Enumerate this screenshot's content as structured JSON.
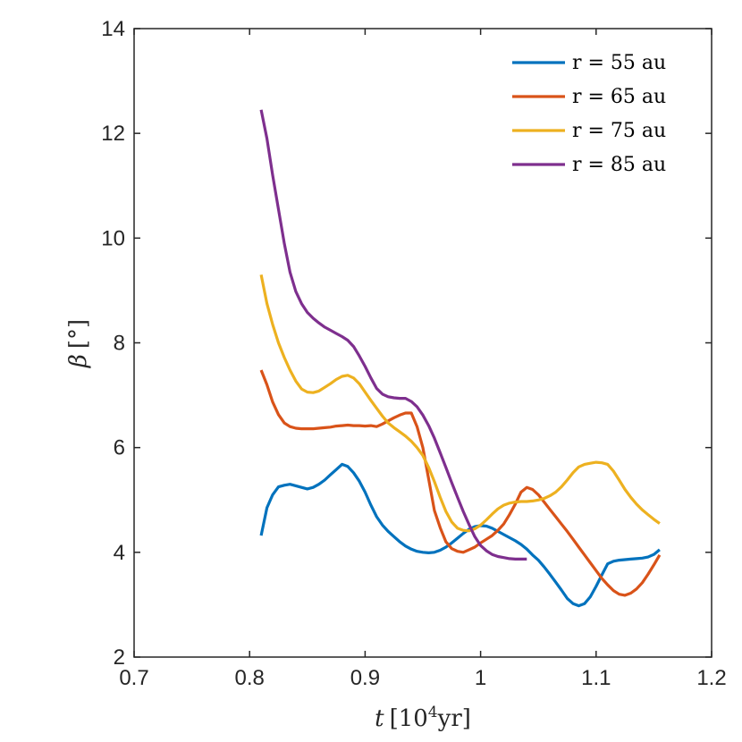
{
  "chart_data": {
    "type": "line",
    "title": "",
    "xlabel": {
      "var": "t",
      "unit_open": "[10",
      "unit_exp": "4",
      "unit_rest": "yr]"
    },
    "ylabel": {
      "var": "β",
      "unit": "[°]"
    },
    "xlim": [
      0.7,
      1.2
    ],
    "ylim": [
      2,
      14
    ],
    "xticks": [
      0.7,
      0.8,
      0.9,
      1.0,
      1.1,
      1.2
    ],
    "xtick_labels": [
      "0.7",
      "0.8",
      "0.9",
      "1",
      "1.1",
      "1.2"
    ],
    "yticks": [
      2,
      4,
      6,
      8,
      10,
      12,
      14
    ],
    "ytick_labels": [
      "2",
      "4",
      "6",
      "8",
      "10",
      "12",
      "14"
    ],
    "grid": false,
    "legend_position": "top-right",
    "series": [
      {
        "name": "r = 55 au",
        "color": "#0072BD",
        "x": [
          0.81,
          0.815,
          0.82,
          0.825,
          0.83,
          0.835,
          0.84,
          0.845,
          0.85,
          0.855,
          0.86,
          0.865,
          0.87,
          0.875,
          0.88,
          0.885,
          0.89,
          0.895,
          0.9,
          0.905,
          0.91,
          0.915,
          0.92,
          0.925,
          0.93,
          0.935,
          0.94,
          0.945,
          0.95,
          0.955,
          0.96,
          0.965,
          0.97,
          0.975,
          0.98,
          0.985,
          0.99,
          0.995,
          1.0,
          1.005,
          1.01,
          1.015,
          1.02,
          1.025,
          1.03,
          1.035,
          1.04,
          1.045,
          1.05,
          1.055,
          1.06,
          1.065,
          1.07,
          1.075,
          1.08,
          1.085,
          1.09,
          1.095,
          1.1,
          1.105,
          1.11,
          1.115,
          1.12,
          1.125,
          1.13,
          1.135,
          1.14,
          1.145,
          1.15,
          1.155
        ],
        "y": [
          4.32,
          4.85,
          5.1,
          5.25,
          5.28,
          5.3,
          5.27,
          5.24,
          5.21,
          5.24,
          5.3,
          5.38,
          5.48,
          5.58,
          5.68,
          5.64,
          5.52,
          5.36,
          5.15,
          4.9,
          4.68,
          4.52,
          4.4,
          4.3,
          4.2,
          4.12,
          4.06,
          4.02,
          4.0,
          3.99,
          4.0,
          4.04,
          4.1,
          4.18,
          4.27,
          4.36,
          4.44,
          4.49,
          4.51,
          4.5,
          4.46,
          4.4,
          4.34,
          4.28,
          4.22,
          4.15,
          4.06,
          3.95,
          3.85,
          3.72,
          3.58,
          3.43,
          3.28,
          3.12,
          3.02,
          2.98,
          3.02,
          3.15,
          3.35,
          3.57,
          3.78,
          3.83,
          3.85,
          3.86,
          3.87,
          3.88,
          3.89,
          3.91,
          3.96,
          4.05
        ]
      },
      {
        "name": "r = 65 au",
        "color": "#D95319",
        "x": [
          0.81,
          0.815,
          0.82,
          0.825,
          0.83,
          0.835,
          0.84,
          0.845,
          0.85,
          0.855,
          0.86,
          0.865,
          0.87,
          0.875,
          0.88,
          0.885,
          0.89,
          0.895,
          0.9,
          0.905,
          0.91,
          0.915,
          0.92,
          0.925,
          0.93,
          0.935,
          0.94,
          0.945,
          0.95,
          0.955,
          0.96,
          0.965,
          0.97,
          0.975,
          0.98,
          0.985,
          0.99,
          0.995,
          1.0,
          1.005,
          1.01,
          1.015,
          1.02,
          1.025,
          1.03,
          1.035,
          1.04,
          1.045,
          1.05,
          1.055,
          1.06,
          1.065,
          1.07,
          1.075,
          1.08,
          1.085,
          1.09,
          1.095,
          1.1,
          1.105,
          1.11,
          1.115,
          1.12,
          1.125,
          1.13,
          1.135,
          1.14,
          1.145,
          1.15,
          1.155
        ],
        "y": [
          7.48,
          7.2,
          6.87,
          6.63,
          6.47,
          6.4,
          6.37,
          6.36,
          6.36,
          6.36,
          6.37,
          6.38,
          6.39,
          6.41,
          6.42,
          6.43,
          6.42,
          6.42,
          6.41,
          6.42,
          6.4,
          6.45,
          6.51,
          6.57,
          6.62,
          6.66,
          6.66,
          6.4,
          6.0,
          5.4,
          4.8,
          4.47,
          4.2,
          4.07,
          4.02,
          4.0,
          4.05,
          4.1,
          4.18,
          4.25,
          4.32,
          4.42,
          4.54,
          4.72,
          4.92,
          5.15,
          5.24,
          5.2,
          5.1,
          4.96,
          4.82,
          4.68,
          4.54,
          4.4,
          4.25,
          4.1,
          3.95,
          3.8,
          3.65,
          3.5,
          3.38,
          3.27,
          3.2,
          3.18,
          3.22,
          3.3,
          3.42,
          3.58,
          3.76,
          3.95
        ]
      },
      {
        "name": "r = 75 au",
        "color": "#EDB120",
        "x": [
          0.81,
          0.815,
          0.82,
          0.825,
          0.83,
          0.835,
          0.84,
          0.845,
          0.85,
          0.855,
          0.86,
          0.865,
          0.87,
          0.875,
          0.88,
          0.885,
          0.89,
          0.895,
          0.9,
          0.905,
          0.91,
          0.915,
          0.92,
          0.925,
          0.93,
          0.935,
          0.94,
          0.945,
          0.95,
          0.955,
          0.96,
          0.965,
          0.97,
          0.975,
          0.98,
          0.985,
          0.99,
          0.995,
          1.0,
          1.005,
          1.01,
          1.015,
          1.02,
          1.025,
          1.03,
          1.035,
          1.04,
          1.045,
          1.05,
          1.055,
          1.06,
          1.065,
          1.07,
          1.075,
          1.08,
          1.085,
          1.09,
          1.095,
          1.1,
          1.105,
          1.11,
          1.115,
          1.12,
          1.125,
          1.13,
          1.135,
          1.14,
          1.145,
          1.15,
          1.155
        ],
        "y": [
          9.3,
          8.75,
          8.35,
          8.0,
          7.72,
          7.48,
          7.27,
          7.12,
          7.06,
          7.05,
          7.08,
          7.15,
          7.22,
          7.3,
          7.36,
          7.38,
          7.33,
          7.22,
          7.06,
          6.9,
          6.75,
          6.6,
          6.47,
          6.38,
          6.3,
          6.22,
          6.12,
          6.0,
          5.85,
          5.62,
          5.35,
          5.05,
          4.78,
          4.58,
          4.46,
          4.42,
          4.41,
          4.45,
          4.52,
          4.62,
          4.73,
          4.83,
          4.9,
          4.94,
          4.96,
          4.97,
          4.97,
          4.98,
          5.0,
          5.03,
          5.08,
          5.15,
          5.25,
          5.38,
          5.52,
          5.63,
          5.68,
          5.7,
          5.72,
          5.71,
          5.68,
          5.55,
          5.38,
          5.2,
          5.05,
          4.92,
          4.81,
          4.72,
          4.63,
          4.55
        ]
      },
      {
        "name": "r = 85 au",
        "color": "#7E2F8E",
        "x": [
          0.81,
          0.815,
          0.82,
          0.825,
          0.83,
          0.835,
          0.84,
          0.845,
          0.85,
          0.855,
          0.86,
          0.865,
          0.87,
          0.875,
          0.88,
          0.885,
          0.89,
          0.895,
          0.9,
          0.905,
          0.91,
          0.915,
          0.92,
          0.925,
          0.93,
          0.935,
          0.94,
          0.945,
          0.95,
          0.955,
          0.96,
          0.965,
          0.97,
          0.975,
          0.98,
          0.985,
          0.99,
          0.995,
          1.0,
          1.005,
          1.01,
          1.015,
          1.02,
          1.025,
          1.03,
          1.035,
          1.04
        ],
        "y": [
          12.45,
          11.9,
          11.2,
          10.55,
          9.9,
          9.35,
          8.98,
          8.75,
          8.58,
          8.47,
          8.38,
          8.3,
          8.24,
          8.18,
          8.12,
          8.05,
          7.93,
          7.75,
          7.55,
          7.33,
          7.13,
          7.02,
          6.97,
          6.95,
          6.94,
          6.94,
          6.88,
          6.78,
          6.62,
          6.42,
          6.18,
          5.9,
          5.62,
          5.33,
          5.05,
          4.78,
          4.53,
          4.3,
          4.13,
          4.03,
          3.96,
          3.92,
          3.9,
          3.88,
          3.87,
          3.87,
          3.87
        ]
      }
    ]
  }
}
